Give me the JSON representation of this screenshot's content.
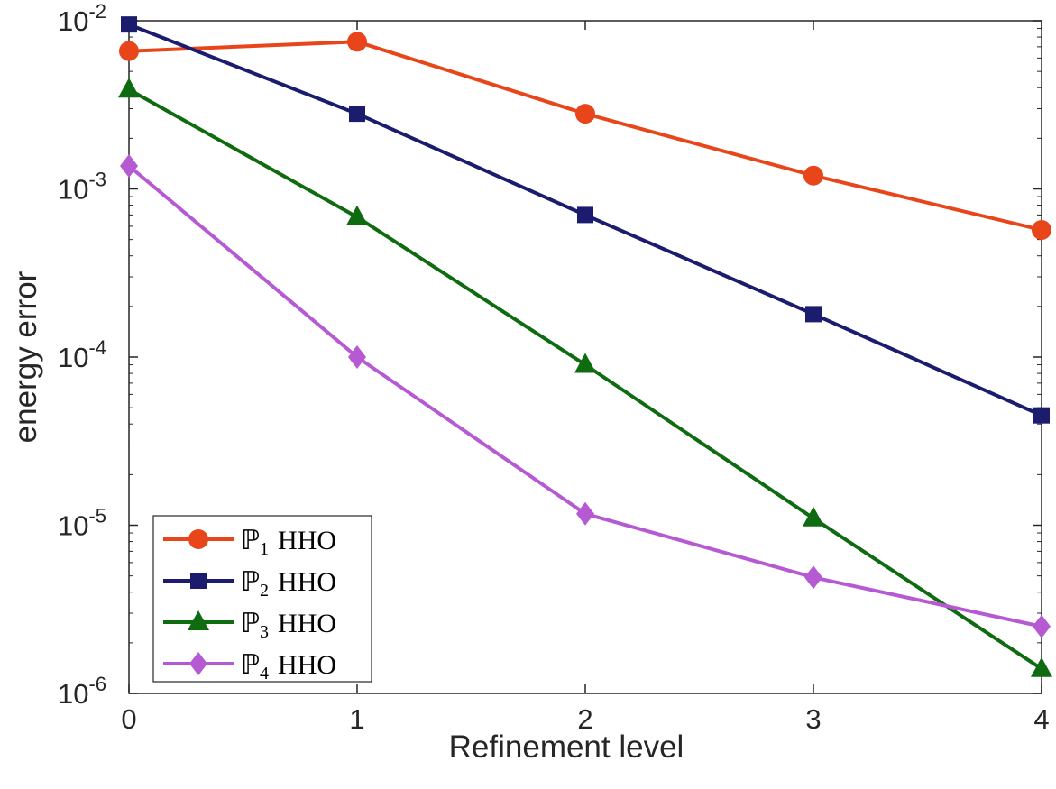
{
  "chart_data": {
    "type": "line",
    "xlabel": "Refinement level",
    "ylabel": "energy error",
    "yscale": "log",
    "xlim": [
      0,
      4
    ],
    "ylim": [
      1e-06,
      0.01
    ],
    "x": [
      0,
      1,
      2,
      3,
      4
    ],
    "x_ticks": [
      0,
      1,
      2,
      3,
      4
    ],
    "x_tick_labels": [
      "0",
      "1",
      "2",
      "3",
      "4"
    ],
    "y_ticks": [
      1e-06,
      1e-05,
      0.0001,
      0.001,
      0.01
    ],
    "y_tick_labels": [
      {
        "base": "10",
        "exp": "-6"
      },
      {
        "base": "10",
        "exp": "-5"
      },
      {
        "base": "10",
        "exp": "-4"
      },
      {
        "base": "10",
        "exp": "-3"
      },
      {
        "base": "10",
        "exp": "-2"
      }
    ],
    "grid": false,
    "legend_position": "bottom-left",
    "series": [
      {
        "name": "P1 HHO",
        "legend_symbol": "ℙ",
        "legend_sub": "1",
        "legend_suffix": "HHO",
        "color": "#e8461a",
        "marker": "circle",
        "values": [
          0.0066,
          0.0075,
          0.0028,
          0.0012,
          0.00057
        ]
      },
      {
        "name": "P2 HHO",
        "legend_symbol": "ℙ",
        "legend_sub": "2",
        "legend_suffix": "HHO",
        "color": "#1c1c6e",
        "marker": "square",
        "values": [
          0.0095,
          0.0028,
          0.0007,
          0.00018,
          4.5e-05
        ]
      },
      {
        "name": "P3 HHO",
        "legend_symbol": "ℙ",
        "legend_sub": "3",
        "legend_suffix": "HHO",
        "color": "#0f6b0f",
        "marker": "triangle",
        "values": [
          0.0039,
          0.00068,
          9e-05,
          1.1e-05,
          1.4e-06
        ]
      },
      {
        "name": "P4 HHO",
        "legend_symbol": "ℙ",
        "legend_sub": "4",
        "legend_suffix": "HHO",
        "color": "#b55ad3",
        "marker": "diamond",
        "values": [
          0.00137,
          0.0001,
          1.17e-05,
          4.9e-06,
          2.5e-06
        ]
      }
    ]
  }
}
